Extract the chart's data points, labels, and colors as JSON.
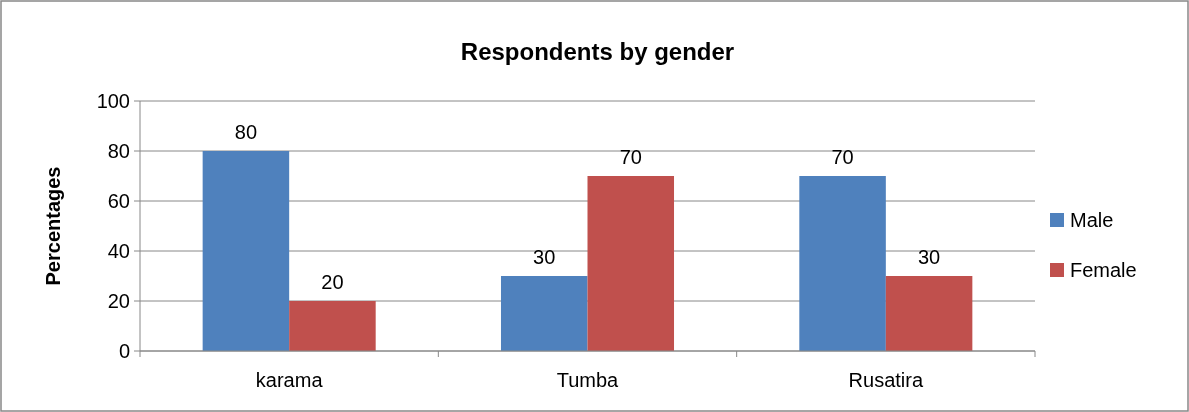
{
  "chart_data": {
    "type": "bar",
    "title": "Respondents by gender",
    "ylabel": "Percentages",
    "categories": [
      "karama",
      "Tumba",
      "Rusatira"
    ],
    "series": [
      {
        "name": "Male",
        "color": "#4f81bd",
        "values": [
          80,
          30,
          70
        ]
      },
      {
        "name": "Female",
        "color": "#c0504d",
        "values": [
          20,
          70,
          30
        ]
      }
    ],
    "ylim": [
      0,
      100
    ],
    "yticks": [
      0,
      20,
      40,
      60,
      80,
      100
    ],
    "grid": "y",
    "legend": "right",
    "data_labels": true
  }
}
